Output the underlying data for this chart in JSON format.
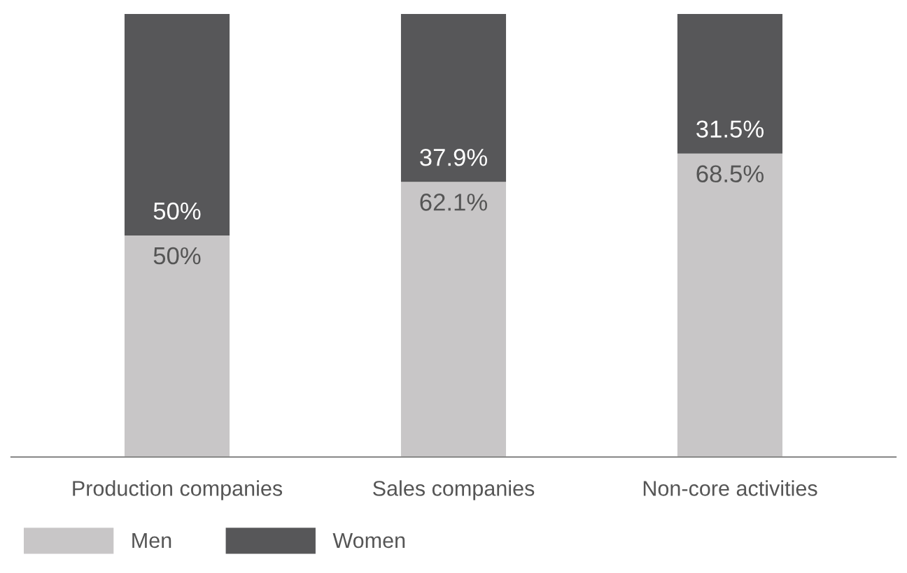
{
  "chart_data": {
    "type": "bar",
    "stacked": true,
    "categories": [
      "Production companies",
      "Sales companies",
      "Non-core activities"
    ],
    "series": [
      {
        "name": "Men",
        "color": "#c8c6c7",
        "values": [
          50,
          62.1,
          68.5
        ],
        "value_labels": [
          "50%",
          "62.1%",
          "68.5%"
        ]
      },
      {
        "name": "Women",
        "color": "#575759",
        "values": [
          50,
          37.9,
          31.5
        ],
        "value_labels": [
          "50%",
          "37.9%",
          "31.5%"
        ]
      }
    ],
    "ylim": [
      0,
      100
    ],
    "tick_labels": "x",
    "grid": false,
    "legend": "bottom left"
  }
}
